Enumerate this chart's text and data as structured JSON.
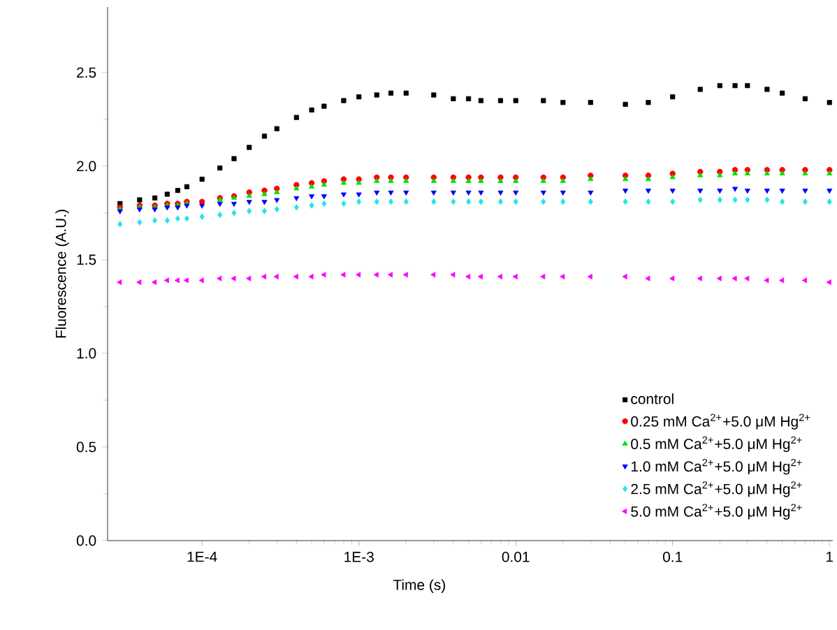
{
  "chart_data": {
    "type": "scatter",
    "xlabel": "Time (s)",
    "ylabel": "Fluorescence (A.U.)",
    "log": "x",
    "xlim": [
      2.5e-05,
      1.05
    ],
    "ylim": [
      0,
      2.85
    ],
    "xticks": [
      {
        "value": 0.0001,
        "label": "1E-4"
      },
      {
        "value": 0.001,
        "label": "1E-3"
      },
      0.01,
      0.1,
      1
    ],
    "yticks": [
      {
        "value": 0,
        "label": "0.0"
      },
      {
        "value": 0.5,
        "label": "0.5"
      },
      {
        "value": 1,
        "label": "1.0"
      },
      {
        "value": 1.5,
        "label": "1.5"
      },
      {
        "value": 2,
        "label": "2.0"
      },
      {
        "value": 2.5,
        "label": "2.5"
      }
    ],
    "grid": false,
    "legend": "bottom right",
    "x": [
      3e-05,
      4e-05,
      5e-05,
      6e-05,
      7e-05,
      8e-05,
      0.0001,
      0.00013,
      0.00016,
      0.0002,
      0.00025,
      0.0003,
      0.0004,
      0.0005,
      0.0006,
      0.0008,
      0.001,
      0.0013,
      0.0016,
      0.002,
      0.003,
      0.004,
      0.005,
      0.006,
      0.008,
      0.01,
      0.015,
      0.02,
      0.03,
      0.05,
      0.07,
      0.1,
      0.15,
      0.2,
      0.25,
      0.3,
      0.4,
      0.5,
      0.7,
      1.0
    ],
    "series": [
      {
        "name": "control",
        "color": "#000000",
        "marker": "square",
        "values": [
          1.8,
          1.82,
          1.83,
          1.85,
          1.87,
          1.89,
          1.93,
          1.99,
          2.04,
          2.1,
          2.16,
          2.2,
          2.26,
          2.3,
          2.32,
          2.35,
          2.37,
          2.38,
          2.39,
          2.39,
          2.38,
          2.36,
          2.36,
          2.35,
          2.35,
          2.35,
          2.35,
          2.34,
          2.34,
          2.33,
          2.34,
          2.37,
          2.41,
          2.43,
          2.43,
          2.43,
          2.41,
          2.39,
          2.36,
          2.34
        ]
      },
      {
        "name": "0.25 mM Ca$^{2+}$+5.0 μM Hg$^{2+}$",
        "color": "#ff0000",
        "marker": "circle",
        "values": [
          1.78,
          1.79,
          1.79,
          1.8,
          1.8,
          1.81,
          1.81,
          1.83,
          1.84,
          1.86,
          1.87,
          1.88,
          1.9,
          1.91,
          1.92,
          1.93,
          1.93,
          1.94,
          1.94,
          1.94,
          1.94,
          1.94,
          1.94,
          1.94,
          1.94,
          1.94,
          1.94,
          1.94,
          1.95,
          1.95,
          1.95,
          1.96,
          1.97,
          1.97,
          1.98,
          1.98,
          1.98,
          1.98,
          1.98,
          1.98
        ]
      },
      {
        "name": "0.5 mM Ca$^{2+}$+5.0 μM Hg$^{2+}$",
        "color": "#00e000",
        "marker": "triangle",
        "values": [
          1.77,
          1.78,
          1.78,
          1.79,
          1.79,
          1.8,
          null,
          1.82,
          1.83,
          1.84,
          1.85,
          1.86,
          1.88,
          1.89,
          1.9,
          1.91,
          1.91,
          1.92,
          1.92,
          1.92,
          1.92,
          1.92,
          1.92,
          1.92,
          1.92,
          1.92,
          1.92,
          1.92,
          1.93,
          1.93,
          1.93,
          1.94,
          1.95,
          1.95,
          1.96,
          1.96,
          1.96,
          1.96,
          1.96,
          1.96
        ]
      },
      {
        "name": "1.0 mM Ca$^{2+}$+5.0 μM Hg$^{2+}$",
        "color": "#0000ff",
        "marker": "triangle down",
        "values": [
          1.76,
          1.77,
          1.77,
          1.78,
          1.78,
          1.79,
          1.79,
          1.8,
          1.8,
          1.81,
          1.81,
          1.82,
          1.83,
          1.84,
          1.84,
          1.85,
          1.85,
          1.86,
          1.86,
          1.86,
          1.86,
          1.86,
          1.86,
          1.86,
          1.86,
          1.86,
          1.86,
          1.86,
          1.86,
          1.87,
          1.87,
          1.87,
          1.87,
          1.87,
          1.88,
          1.87,
          1.87,
          1.87,
          1.87,
          1.87
        ]
      },
      {
        "name": "2.5 mM Ca$^{2+}$+5.0 μM Hg$^{2+}$",
        "color": "#22e6e6",
        "marker": "diamond",
        "values": [
          1.69,
          1.7,
          1.71,
          1.71,
          1.72,
          1.72,
          1.73,
          1.74,
          1.75,
          1.76,
          1.76,
          1.77,
          1.78,
          1.79,
          1.8,
          1.8,
          1.81,
          1.81,
          1.81,
          1.81,
          1.81,
          1.81,
          1.81,
          1.81,
          1.81,
          1.81,
          1.81,
          1.81,
          1.81,
          1.81,
          1.81,
          1.81,
          1.82,
          1.82,
          1.82,
          1.82,
          1.82,
          1.81,
          1.81,
          1.81
        ]
      },
      {
        "name": "5.0 mM Ca$^{2+}$+5.0 μM Hg$^{2+}$",
        "color": "#ff00ff",
        "marker": "triangle left",
        "values": [
          1.38,
          1.38,
          1.38,
          1.39,
          1.39,
          1.39,
          1.39,
          1.4,
          1.4,
          1.4,
          1.41,
          1.41,
          1.41,
          1.41,
          1.42,
          1.42,
          1.42,
          1.42,
          1.42,
          1.42,
          1.42,
          1.42,
          1.41,
          1.41,
          1.41,
          1.41,
          1.41,
          1.41,
          1.41,
          1.41,
          1.4,
          1.4,
          1.4,
          1.4,
          1.4,
          1.4,
          1.39,
          1.39,
          1.39,
          1.38
        ]
      }
    ]
  }
}
